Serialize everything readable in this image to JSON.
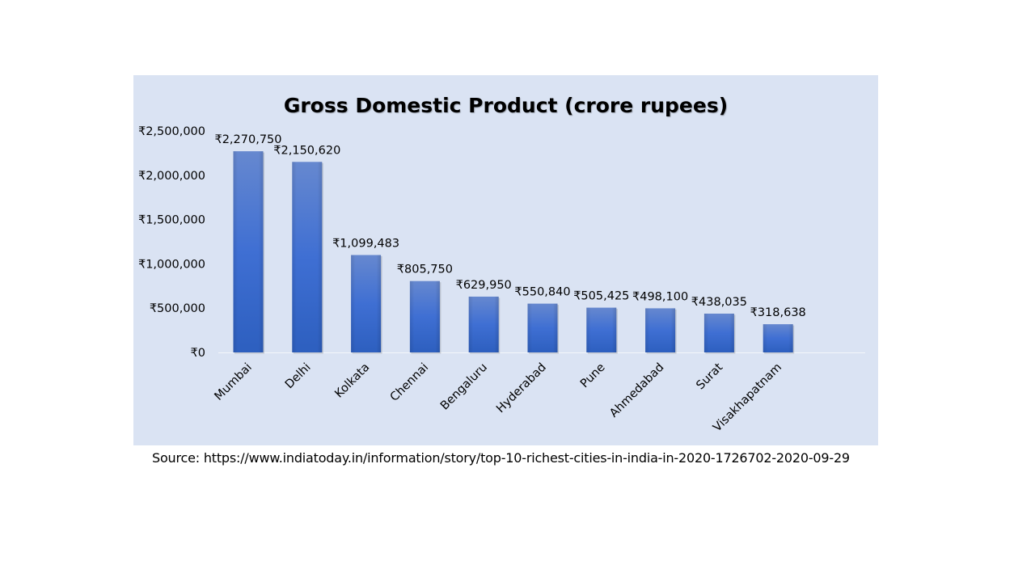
{
  "chart_data": {
    "type": "bar",
    "title": "Gross Domestic Product (crore rupees)",
    "categories": [
      "Mumbai",
      "Delhi",
      "Kolkata",
      "Chennai",
      "Bengaluru",
      "Hyderabad",
      "Pune",
      "Ahmedabad",
      "Surat",
      "Visakhapatnam"
    ],
    "values": [
      2270750,
      2150620,
      1099483,
      805750,
      629950,
      550840,
      505425,
      498100,
      438035,
      318638
    ],
    "data_labels": [
      "₹2,270,750",
      "₹2,150,620",
      "₹1,099,483",
      "₹805,750",
      "₹629,950",
      "₹550,840",
      "₹505,425",
      "₹498,100",
      "₹438,035",
      "₹318,638"
    ],
    "yticks": [
      0,
      500000,
      1000000,
      1500000,
      2000000,
      2500000
    ],
    "ytick_labels": [
      "₹0",
      "₹500,000",
      "₹1,000,000",
      "₹1,500,000",
      "₹2,000,000",
      "₹2,500,000"
    ],
    "ylim": [
      0,
      2500000
    ],
    "xlabel": "",
    "ylabel": "",
    "grid": false,
    "legend": "none",
    "bar_color": "#4472c4",
    "background_color": "#dae3f3"
  },
  "source": "Source: https://www.indiatoday.in/information/story/top-10-richest-cities-in-india-in-2020-1726702-2020-09-29"
}
